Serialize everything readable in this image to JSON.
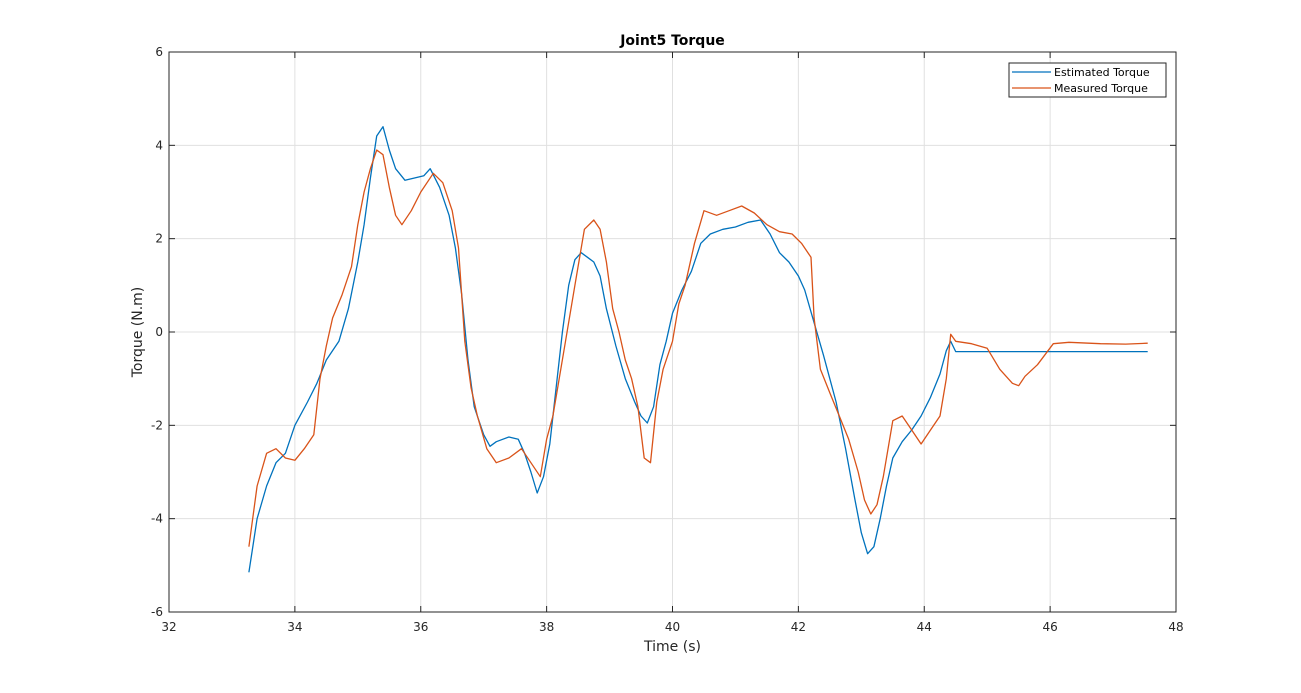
{
  "chart_data": {
    "type": "line",
    "title": "Joint5 Torque",
    "xlabel": "Time (s)",
    "ylabel": "Torque (N.m)",
    "xlim": [
      32,
      48
    ],
    "ylim": [
      -6,
      6
    ],
    "xticks": [
      "32",
      "34",
      "36",
      "38",
      "40",
      "42",
      "44",
      "46",
      "48"
    ],
    "yticks": [
      "-6",
      "-4",
      "-2",
      "0",
      "2",
      "4",
      "6"
    ],
    "grid": true,
    "legend_position": "top-right",
    "series": [
      {
        "name": "Estimated Torque",
        "color": "#0072BD",
        "points": [
          [
            33.27,
            -5.15
          ],
          [
            33.4,
            -4.0
          ],
          [
            33.55,
            -3.3
          ],
          [
            33.7,
            -2.8
          ],
          [
            33.85,
            -2.6
          ],
          [
            34.0,
            -2.0
          ],
          [
            34.2,
            -1.5
          ],
          [
            34.35,
            -1.1
          ],
          [
            34.5,
            -0.6
          ],
          [
            34.7,
            -0.2
          ],
          [
            34.85,
            0.5
          ],
          [
            35.0,
            1.5
          ],
          [
            35.1,
            2.3
          ],
          [
            35.2,
            3.3
          ],
          [
            35.3,
            4.2
          ],
          [
            35.4,
            4.4
          ],
          [
            35.5,
            3.9
          ],
          [
            35.6,
            3.5
          ],
          [
            35.75,
            3.25
          ],
          [
            35.9,
            3.3
          ],
          [
            36.05,
            3.35
          ],
          [
            36.15,
            3.5
          ],
          [
            36.3,
            3.1
          ],
          [
            36.45,
            2.5
          ],
          [
            36.55,
            1.8
          ],
          [
            36.65,
            0.8
          ],
          [
            36.75,
            -0.6
          ],
          [
            36.85,
            -1.6
          ],
          [
            37.0,
            -2.2
          ],
          [
            37.1,
            -2.45
          ],
          [
            37.2,
            -2.35
          ],
          [
            37.4,
            -2.25
          ],
          [
            37.55,
            -2.3
          ],
          [
            37.65,
            -2.6
          ],
          [
            37.75,
            -3.0
          ],
          [
            37.85,
            -3.45
          ],
          [
            37.95,
            -3.1
          ],
          [
            38.05,
            -2.4
          ],
          [
            38.15,
            -1.2
          ],
          [
            38.25,
            0.0
          ],
          [
            38.35,
            1.0
          ],
          [
            38.45,
            1.55
          ],
          [
            38.55,
            1.7
          ],
          [
            38.65,
            1.6
          ],
          [
            38.75,
            1.5
          ],
          [
            38.85,
            1.2
          ],
          [
            38.95,
            0.5
          ],
          [
            39.1,
            -0.3
          ],
          [
            39.25,
            -1.0
          ],
          [
            39.4,
            -1.5
          ],
          [
            39.5,
            -1.8
          ],
          [
            39.6,
            -1.95
          ],
          [
            39.7,
            -1.6
          ],
          [
            39.8,
            -0.7
          ],
          [
            39.9,
            -0.2
          ],
          [
            40.0,
            0.4
          ],
          [
            40.15,
            0.9
          ],
          [
            40.3,
            1.3
          ],
          [
            40.45,
            1.9
          ],
          [
            40.6,
            2.1
          ],
          [
            40.8,
            2.2
          ],
          [
            41.0,
            2.25
          ],
          [
            41.2,
            2.35
          ],
          [
            41.4,
            2.4
          ],
          [
            41.55,
            2.1
          ],
          [
            41.7,
            1.7
          ],
          [
            41.85,
            1.5
          ],
          [
            42.0,
            1.2
          ],
          [
            42.1,
            0.9
          ],
          [
            42.25,
            0.2
          ],
          [
            42.4,
            -0.5
          ],
          [
            42.6,
            -1.5
          ],
          [
            42.75,
            -2.5
          ],
          [
            42.9,
            -3.6
          ],
          [
            43.0,
            -4.3
          ],
          [
            43.1,
            -4.75
          ],
          [
            43.2,
            -4.6
          ],
          [
            43.3,
            -4.0
          ],
          [
            43.4,
            -3.3
          ],
          [
            43.5,
            -2.7
          ],
          [
            43.65,
            -2.35
          ],
          [
            43.8,
            -2.1
          ],
          [
            43.95,
            -1.8
          ],
          [
            44.1,
            -1.4
          ],
          [
            44.25,
            -0.9
          ],
          [
            44.35,
            -0.4
          ],
          [
            44.42,
            -0.2
          ],
          [
            44.5,
            -0.42
          ],
          [
            45.0,
            -0.42
          ],
          [
            46.0,
            -0.42
          ],
          [
            47.0,
            -0.42
          ],
          [
            47.55,
            -0.42
          ]
        ]
      },
      {
        "name": "Measured Torque",
        "color": "#D95319",
        "points": [
          [
            33.27,
            -4.6
          ],
          [
            33.4,
            -3.3
          ],
          [
            33.55,
            -2.6
          ],
          [
            33.7,
            -2.5
          ],
          [
            33.85,
            -2.7
          ],
          [
            34.0,
            -2.75
          ],
          [
            34.15,
            -2.5
          ],
          [
            34.3,
            -2.2
          ],
          [
            34.4,
            -1.0
          ],
          [
            34.5,
            -0.3
          ],
          [
            34.6,
            0.3
          ],
          [
            34.75,
            0.8
          ],
          [
            34.9,
            1.4
          ],
          [
            35.0,
            2.3
          ],
          [
            35.1,
            3.0
          ],
          [
            35.2,
            3.5
          ],
          [
            35.3,
            3.9
          ],
          [
            35.4,
            3.8
          ],
          [
            35.5,
            3.1
          ],
          [
            35.6,
            2.5
          ],
          [
            35.7,
            2.3
          ],
          [
            35.85,
            2.6
          ],
          [
            36.0,
            3.0
          ],
          [
            36.2,
            3.4
          ],
          [
            36.35,
            3.2
          ],
          [
            36.5,
            2.6
          ],
          [
            36.6,
            1.8
          ],
          [
            36.7,
            -0.2
          ],
          [
            36.8,
            -1.2
          ],
          [
            36.9,
            -1.8
          ],
          [
            37.05,
            -2.5
          ],
          [
            37.2,
            -2.8
          ],
          [
            37.4,
            -2.7
          ],
          [
            37.6,
            -2.5
          ],
          [
            37.75,
            -2.8
          ],
          [
            37.9,
            -3.1
          ],
          [
            38.0,
            -2.3
          ],
          [
            38.1,
            -1.8
          ],
          [
            38.2,
            -1.0
          ],
          [
            38.3,
            -0.2
          ],
          [
            38.45,
            1.0
          ],
          [
            38.6,
            2.2
          ],
          [
            38.75,
            2.4
          ],
          [
            38.85,
            2.2
          ],
          [
            38.95,
            1.5
          ],
          [
            39.05,
            0.5
          ],
          [
            39.15,
            0.0
          ],
          [
            39.25,
            -0.6
          ],
          [
            39.35,
            -1.0
          ],
          [
            39.45,
            -1.6
          ],
          [
            39.55,
            -2.7
          ],
          [
            39.65,
            -2.8
          ],
          [
            39.75,
            -1.5
          ],
          [
            39.85,
            -0.8
          ],
          [
            40.0,
            -0.2
          ],
          [
            40.1,
            0.6
          ],
          [
            40.2,
            1.0
          ],
          [
            40.35,
            1.9
          ],
          [
            40.5,
            2.6
          ],
          [
            40.7,
            2.5
          ],
          [
            40.9,
            2.6
          ],
          [
            41.1,
            2.7
          ],
          [
            41.3,
            2.55
          ],
          [
            41.5,
            2.3
          ],
          [
            41.7,
            2.15
          ],
          [
            41.9,
            2.1
          ],
          [
            42.05,
            1.9
          ],
          [
            42.2,
            1.6
          ],
          [
            42.25,
            0.3
          ],
          [
            42.35,
            -0.8
          ],
          [
            42.5,
            -1.3
          ],
          [
            42.65,
            -1.8
          ],
          [
            42.8,
            -2.3
          ],
          [
            42.95,
            -3.0
          ],
          [
            43.05,
            -3.6
          ],
          [
            43.15,
            -3.9
          ],
          [
            43.25,
            -3.7
          ],
          [
            43.35,
            -3.1
          ],
          [
            43.5,
            -1.9
          ],
          [
            43.65,
            -1.8
          ],
          [
            43.8,
            -2.1
          ],
          [
            43.95,
            -2.4
          ],
          [
            44.1,
            -2.1
          ],
          [
            44.25,
            -1.8
          ],
          [
            44.35,
            -1.0
          ],
          [
            44.42,
            -0.05
          ],
          [
            44.5,
            -0.2
          ],
          [
            44.75,
            -0.25
          ],
          [
            45.0,
            -0.35
          ],
          [
            45.2,
            -0.8
          ],
          [
            45.4,
            -1.1
          ],
          [
            45.5,
            -1.15
          ],
          [
            45.6,
            -0.95
          ],
          [
            45.8,
            -0.7
          ],
          [
            46.05,
            -0.25
          ],
          [
            46.3,
            -0.22
          ],
          [
            46.8,
            -0.25
          ],
          [
            47.2,
            -0.26
          ],
          [
            47.55,
            -0.24
          ]
        ]
      }
    ]
  }
}
